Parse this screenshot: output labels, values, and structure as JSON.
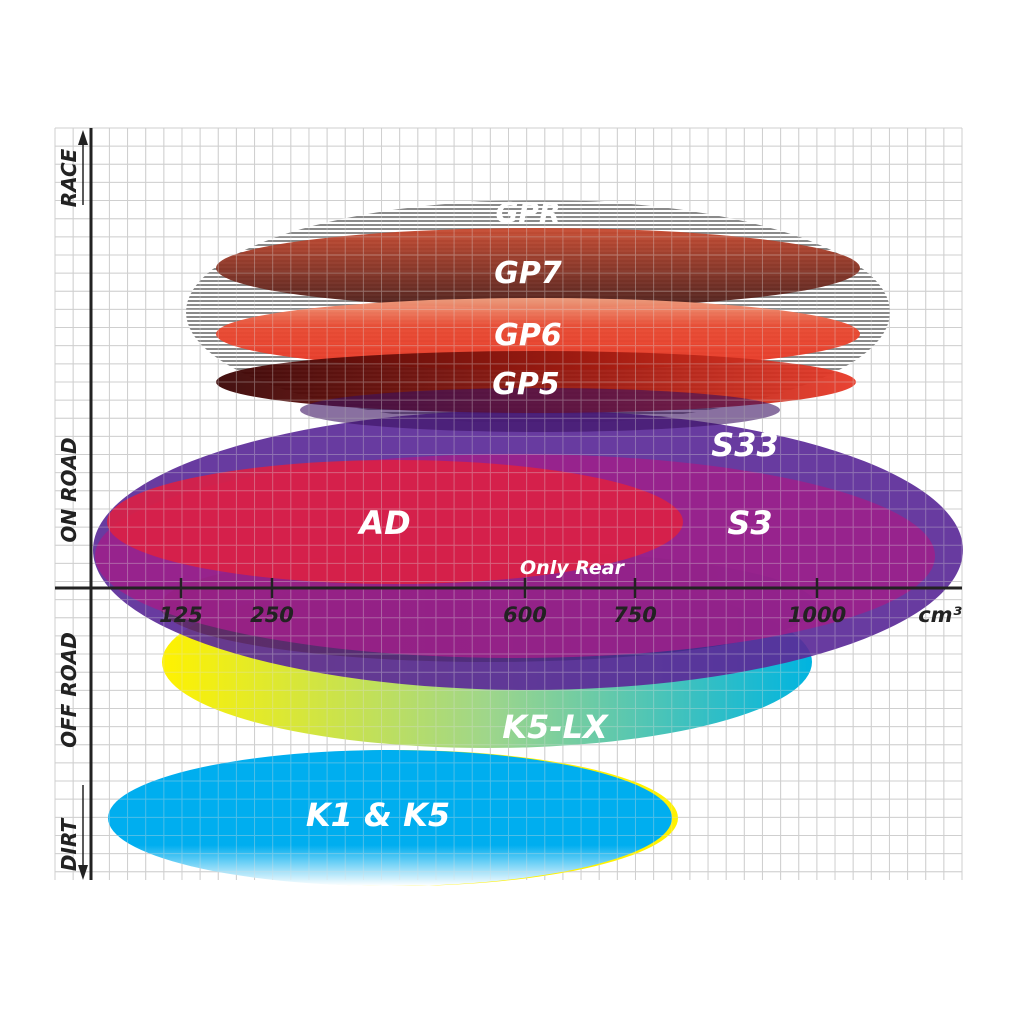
{
  "chart_data": {
    "type": "range-ellipses",
    "xlabel": "cm³",
    "x_ticks": [
      125,
      250,
      600,
      750,
      1000
    ],
    "y_categories": [
      "RACE",
      "ON ROAD",
      "OFF ROAD",
      "DIRT"
    ],
    "grid": true,
    "series": [
      {
        "name": "GPR",
        "color": "#9a9a9a"
      },
      {
        "name": "GP7",
        "color": "#8b3a2a"
      },
      {
        "name": "GP6",
        "color": "#e8452f"
      },
      {
        "name": "GP5",
        "color": "#8a1010"
      },
      {
        "name": "S33",
        "color": "#5b2a98"
      },
      {
        "name": "S3",
        "color": "#a0208a"
      },
      {
        "name": "AD",
        "color": "#dc2044"
      },
      {
        "name": "Only Rear",
        "color": "#8e2a8a"
      },
      {
        "name": "K5-LX",
        "color": "#18b8d0"
      },
      {
        "name": "K1 & K5",
        "color": "#00aeef"
      }
    ]
  }
}
